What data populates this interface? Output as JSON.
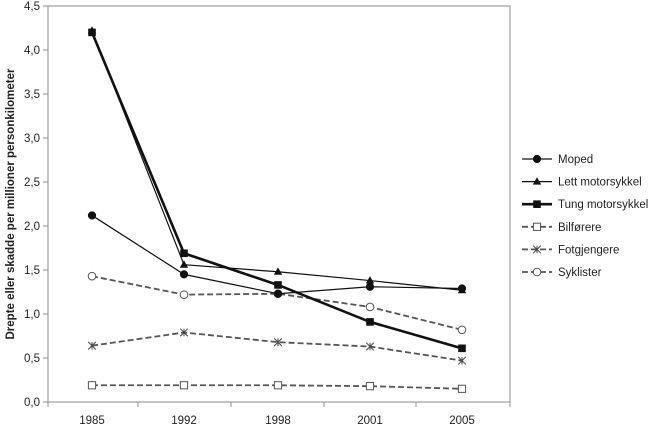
{
  "chart_data": {
    "type": "line",
    "title": "",
    "xlabel": "",
    "ylabel": "Drepte eller skadde per millioner personkilometer",
    "categories": [
      "1985",
      "1992",
      "1998",
      "2001",
      "2005"
    ],
    "yticks": [
      "0,0",
      "0,5",
      "1,0",
      "1,5",
      "2,0",
      "2,5",
      "3,0",
      "3,5",
      "4,0",
      "4,5"
    ],
    "ylim": [
      0,
      4.5
    ],
    "grid": false,
    "legend_position": "right",
    "series": [
      {
        "name": "Moped",
        "values": [
          2.12,
          1.45,
          1.23,
          1.31,
          1.29
        ],
        "marker": "circle-filled",
        "line": "solid",
        "line_weight": "thin",
        "color": "#000000"
      },
      {
        "name": "Lett motorsykkel",
        "values": [
          4.22,
          1.56,
          1.48,
          1.38,
          1.27
        ],
        "marker": "triangle-filled",
        "line": "solid",
        "line_weight": "thin",
        "color": "#000000"
      },
      {
        "name": "Tung motorsykkel",
        "values": [
          4.2,
          1.69,
          1.33,
          0.91,
          0.61
        ],
        "marker": "square-filled",
        "line": "solid",
        "line_weight": "thick",
        "color": "#000000"
      },
      {
        "name": "Bilførere",
        "values": [
          0.19,
          0.19,
          0.19,
          0.18,
          0.15
        ],
        "marker": "square-open",
        "line": "dashed",
        "line_weight": "thin",
        "color": "#555555"
      },
      {
        "name": "Fotgjengere",
        "values": [
          0.64,
          0.79,
          0.68,
          0.63,
          0.47
        ],
        "marker": "star",
        "line": "dashed",
        "line_weight": "thin",
        "color": "#555555"
      },
      {
        "name": "Syklister",
        "values": [
          1.43,
          1.22,
          1.23,
          1.08,
          0.82
        ],
        "marker": "circle-open",
        "line": "dashed",
        "line_weight": "thin",
        "color": "#555555"
      }
    ]
  }
}
